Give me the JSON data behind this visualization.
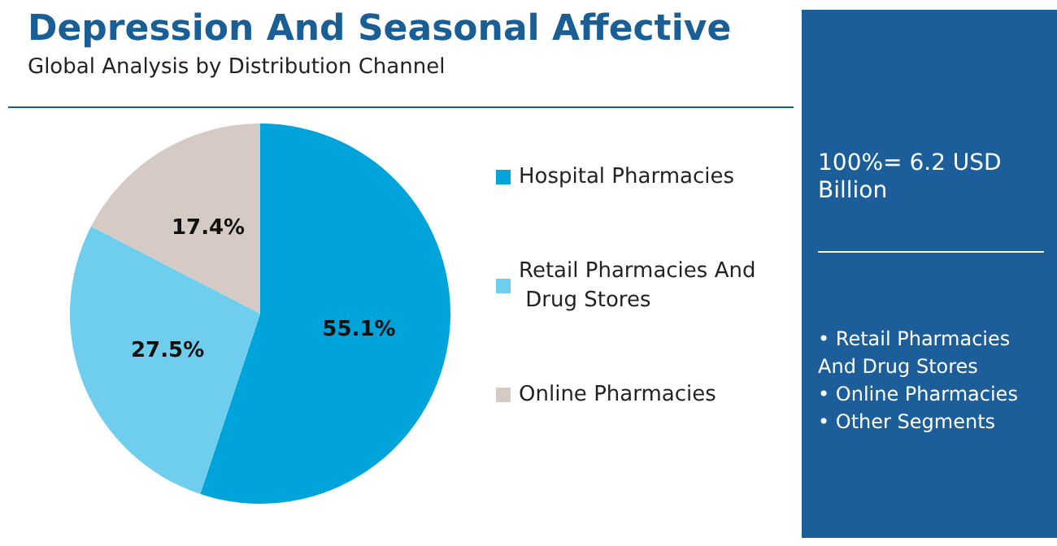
{
  "chart_data": {
    "type": "pie",
    "title": "Depression And Seasonal Affective",
    "subtitle": "Global Analysis by Distribution Channel",
    "categories": [
      "Hospital Pharmacies",
      "Retail Pharmacies And Drug Stores",
      "Online Pharmacies"
    ],
    "values": [
      55.1,
      27.5,
      17.4
    ],
    "value_labels": [
      "55.1%",
      "27.5%",
      "17.4%"
    ],
    "colors": [
      "#00a3da",
      "#6fcdee",
      "#d5cac4"
    ],
    "legend": "right",
    "annotations": [
      "100%= 6.2 USD Billion",
      "• Retail Pharmacies And Drug Stores\n• Online Pharmacies\n• Other Segments"
    ]
  }
}
